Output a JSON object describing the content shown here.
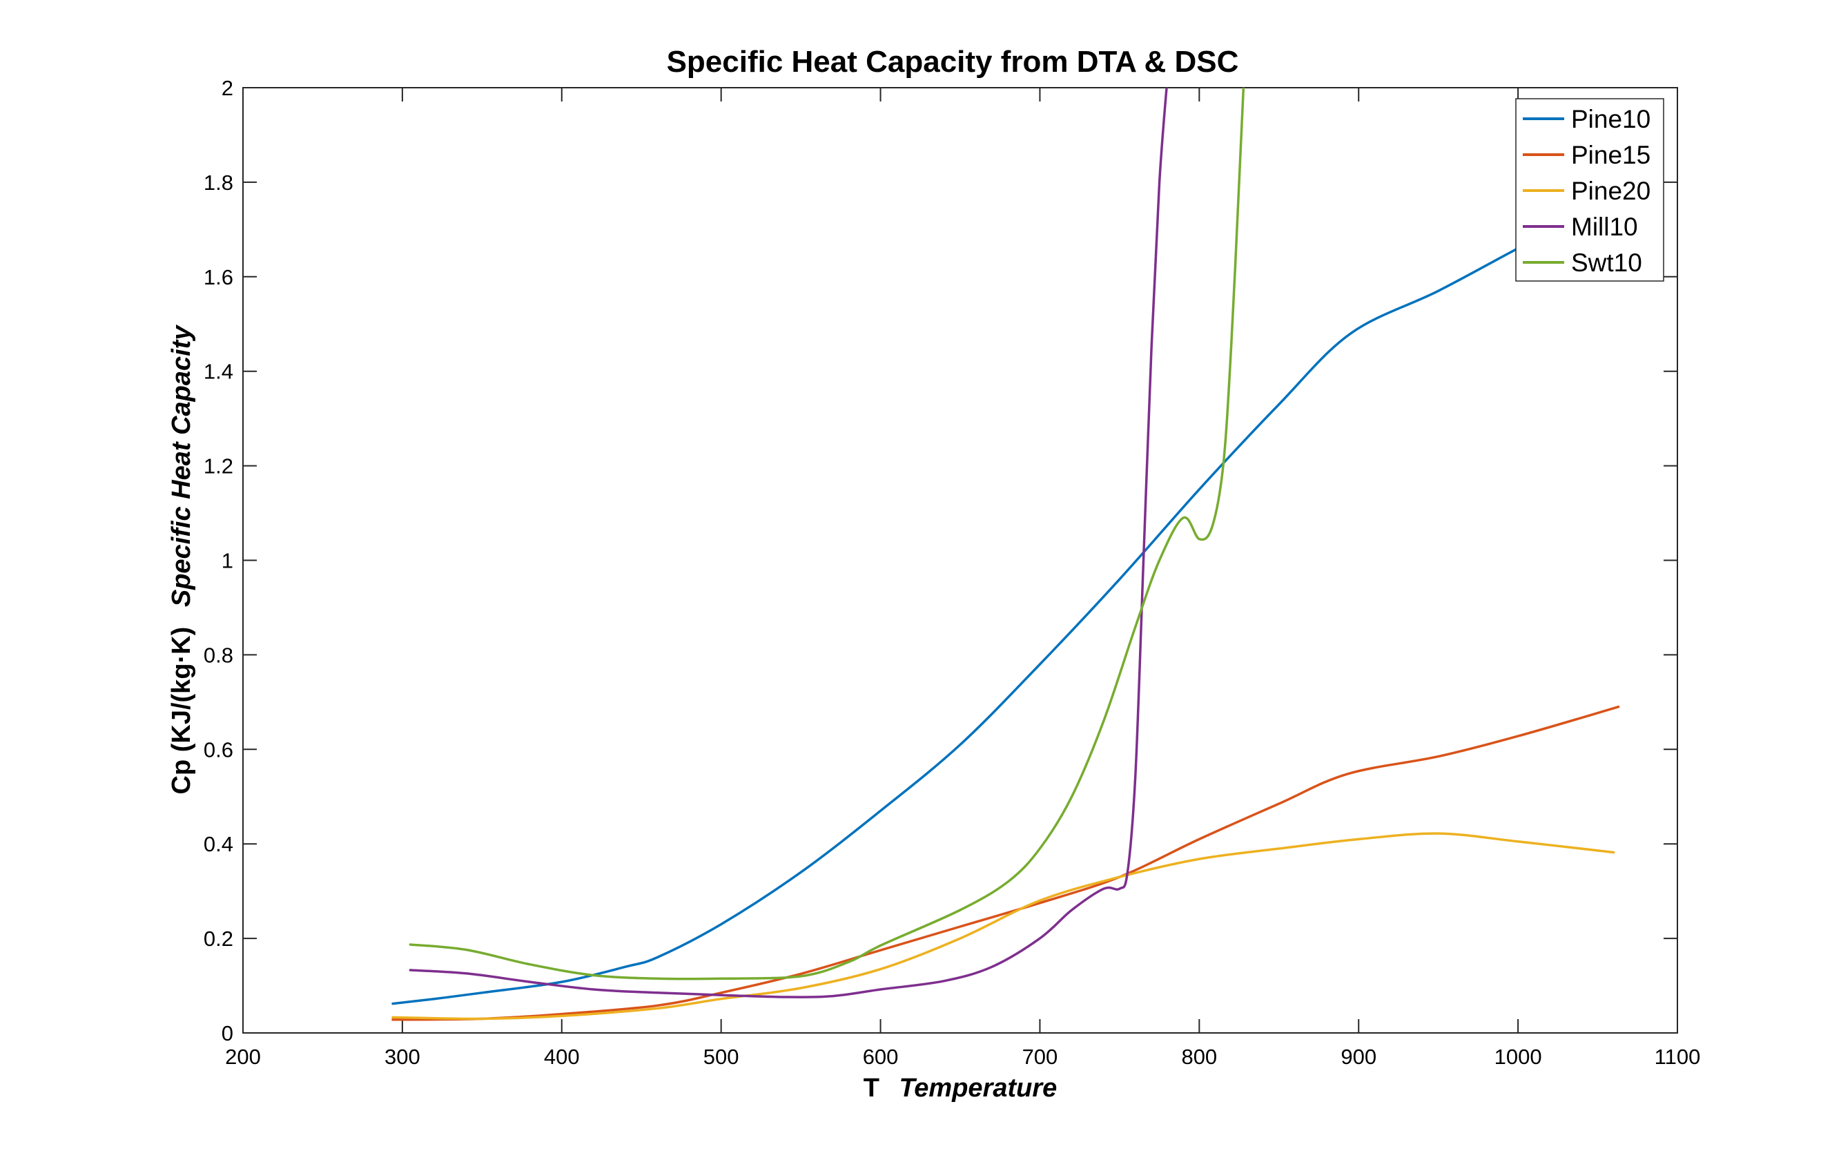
{
  "chart_data": {
    "type": "line",
    "title": "Specific Heat Capacity from DTA & DSC",
    "xlabel": {
      "symbol": "T",
      "name": "Temperature"
    },
    "ylabel": {
      "symbol": "Cp (KJ/(kg·K)",
      "name": "Specific Heat Capacity"
    },
    "xlim": [
      200,
      1100
    ],
    "ylim": [
      0,
      2
    ],
    "xticks": [
      200,
      300,
      400,
      500,
      600,
      700,
      800,
      900,
      1000,
      1100
    ],
    "yticks": [
      0,
      0.2,
      0.4,
      0.6,
      0.8,
      1,
      1.2,
      1.4,
      1.6,
      1.8,
      2
    ],
    "ytick_labels": [
      "0",
      "0.2",
      "0.4",
      "0.6",
      "0.8",
      "1",
      "1.2",
      "1.4",
      "1.6",
      "1.8",
      "2"
    ],
    "grid": false,
    "box": true,
    "legend": {
      "position": "top-right"
    },
    "series": [
      {
        "name": "Pine10",
        "color": "#0072BD",
        "x": [
          294,
          320,
          350,
          400,
          440,
          460,
          500,
          550,
          600,
          650,
          700,
          750,
          800,
          850,
          895,
          950,
          1000,
          1030,
          1063
        ],
        "y": [
          0.062,
          0.072,
          0.085,
          0.108,
          0.14,
          0.16,
          0.23,
          0.34,
          0.47,
          0.61,
          0.78,
          0.96,
          1.15,
          1.33,
          1.48,
          1.57,
          1.66,
          1.71,
          1.76
        ]
      },
      {
        "name": "Pine15",
        "color": "#D95319",
        "x": [
          294,
          350,
          400,
          460,
          500,
          550,
          600,
          650,
          700,
          750,
          800,
          850,
          893,
          950,
          1000,
          1063
        ],
        "y": [
          0.028,
          0.03,
          0.04,
          0.058,
          0.085,
          0.125,
          0.175,
          0.225,
          0.275,
          0.33,
          0.41,
          0.485,
          0.548,
          0.585,
          0.628,
          0.69
        ]
      },
      {
        "name": "Pine20",
        "color": "#EDB120",
        "x": [
          294,
          350,
          400,
          460,
          500,
          550,
          600,
          650,
          700,
          750,
          800,
          850,
          900,
          950,
          1000,
          1060
        ],
        "y": [
          0.033,
          0.03,
          0.036,
          0.052,
          0.072,
          0.095,
          0.135,
          0.2,
          0.28,
          0.33,
          0.368,
          0.39,
          0.41,
          0.422,
          0.405,
          0.382
        ]
      },
      {
        "name": "Mill10",
        "color": "#7E2F8E",
        "x": [
          305,
          340,
          380,
          420,
          460,
          500,
          540,
          570,
          600,
          640,
          670,
          700,
          720,
          740,
          750,
          755,
          760,
          765,
          770,
          775,
          780
        ],
        "y": [
          0.133,
          0.126,
          0.108,
          0.092,
          0.085,
          0.08,
          0.076,
          0.078,
          0.092,
          0.11,
          0.14,
          0.2,
          0.26,
          0.305,
          0.305,
          0.34,
          0.55,
          1.0,
          1.45,
          1.8,
          2.02
        ]
      },
      {
        "name": "Swt10",
        "color": "#77AC30",
        "x": [
          305,
          340,
          380,
          420,
          460,
          500,
          550,
          580,
          600,
          650,
          680,
          700,
          720,
          740,
          760,
          775,
          790,
          800,
          808,
          815,
          820,
          825,
          828
        ],
        "y": [
          0.187,
          0.176,
          0.145,
          0.122,
          0.115,
          0.115,
          0.12,
          0.15,
          0.185,
          0.26,
          0.32,
          0.39,
          0.5,
          0.66,
          0.86,
          1.0,
          1.09,
          1.045,
          1.07,
          1.2,
          1.45,
          1.8,
          2.02
        ]
      }
    ]
  }
}
